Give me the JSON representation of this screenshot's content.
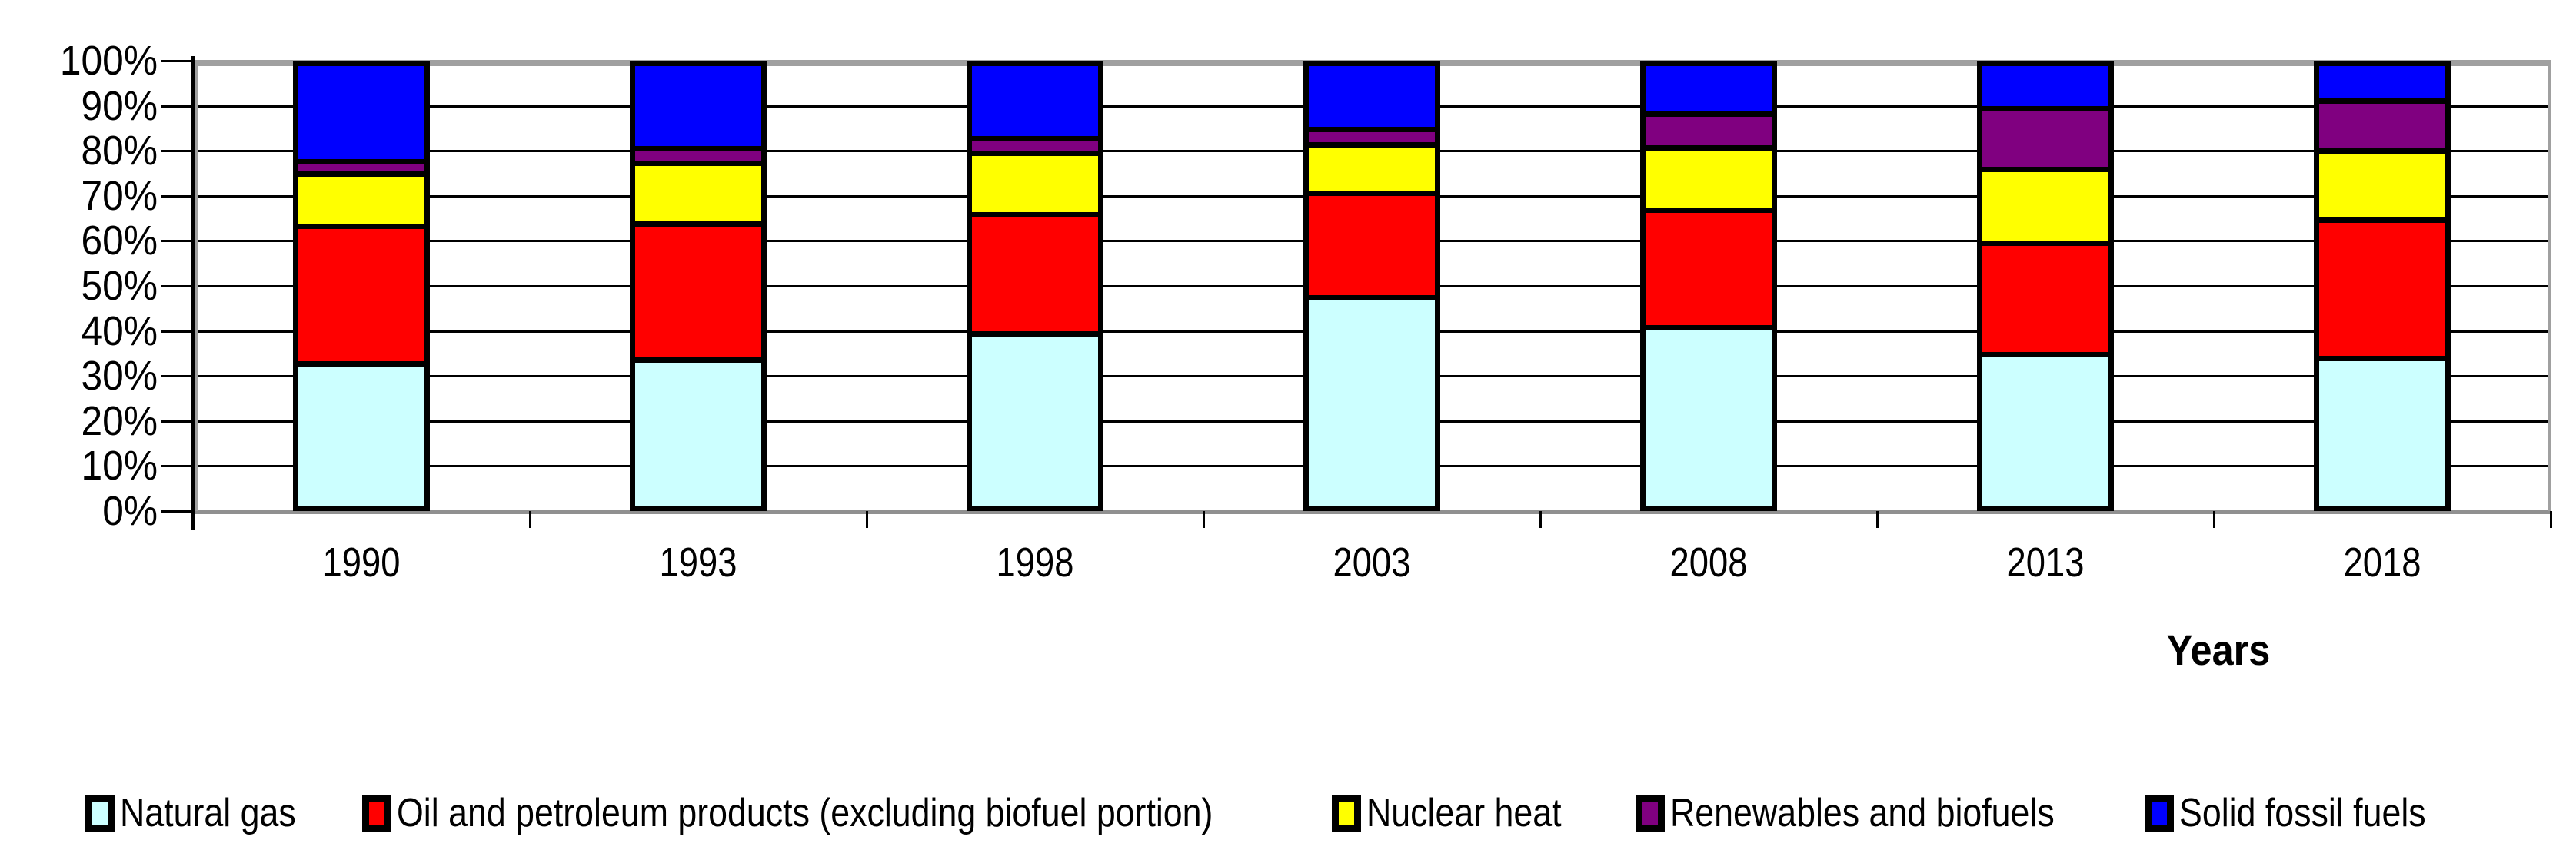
{
  "chart_data": {
    "type": "bar",
    "variant": "stacked-100-percent-column",
    "title": "",
    "xlabel": "Years",
    "ylabel": "",
    "ylim": [
      0,
      100
    ],
    "grid": true,
    "legend_position": "bottom",
    "y_tick_labels": [
      "100%",
      "90%",
      "80%",
      "70%",
      "60%",
      "50%",
      "40%",
      "30%",
      "20%",
      "10%",
      "0%"
    ],
    "categories": [
      "1990",
      "1993",
      "1998",
      "2003",
      "2008",
      "2013",
      "2018"
    ],
    "series": [
      {
        "name": "Natural gas",
        "color": "#CCFFFF",
        "values": [
          31.6,
          32.5,
          38.4,
          46.6,
          39.8,
          33.8,
          32.8
        ]
      },
      {
        "name": "Oil and petroleum products (excluding biofuel portion)",
        "color": "#FF0000",
        "values": [
          31.3,
          31.0,
          27.1,
          23.9,
          26.8,
          25.3,
          31.5
        ]
      },
      {
        "name": "Nuclear heat",
        "color": "#FFFF00",
        "values": [
          11.9,
          13.7,
          14.1,
          11.0,
          14.2,
          16.7,
          15.7
        ]
      },
      {
        "name": "Renewables and biofuels",
        "color": "#800080",
        "values": [
          2.8,
          3.4,
          3.2,
          3.4,
          7.6,
          13.9,
          11.4
        ]
      },
      {
        "name": "Solid fossil fuels",
        "color": "#0000FF",
        "values": [
          22.4,
          19.4,
          17.2,
          15.1,
          11.6,
          10.3,
          8.6
        ]
      }
    ],
    "colors": {
      "gridline": "#000000",
      "axis_line": "#000000",
      "axis_shadow": "#a0a0a0",
      "plot_background": "#ffffff",
      "bar_border": "#000000"
    }
  }
}
